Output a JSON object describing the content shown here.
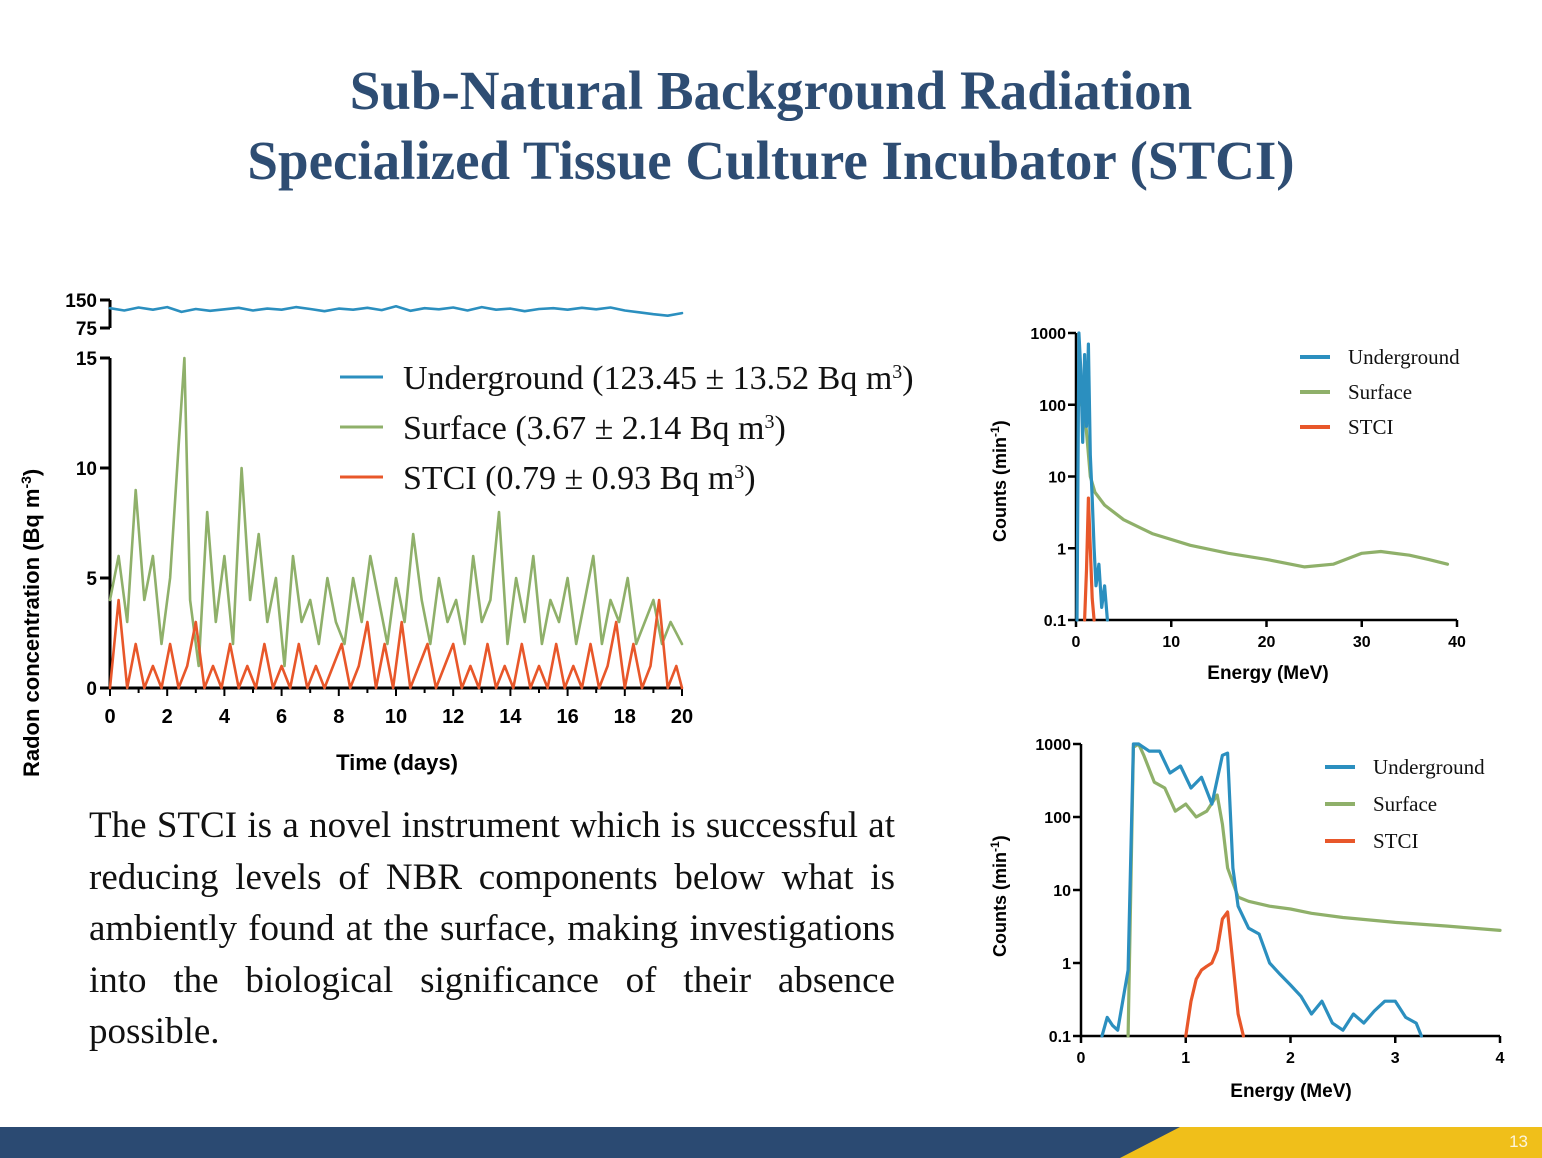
{
  "slide": {
    "title_line1": "Sub-Natural Background Radiation",
    "title_line2": "Specialized Tissue Culture Incubator (STCI)",
    "body_text": "The STCI is a novel instrument which is successful at reducing levels of NBR components below what is ambiently found at the surface, making investigations into the biological significance of their absence possible.",
    "page_number": "13"
  },
  "colors": {
    "title": "#2e4d73",
    "underground": "#2b8fbf",
    "surface": "#8fb06a",
    "stci": "#e8572a",
    "footer_navy": "#2b4a72",
    "footer_gold": "#f0bf1a"
  },
  "chart_data": [
    {
      "type": "line",
      "id": "radon",
      "xlabel": "Time (days)",
      "ylabel": "Radon concentration (Bq m",
      "ylabel_sup": "-3",
      "ylabel_end": ")",
      "xlim": [
        0,
        20
      ],
      "xticks": [
        0,
        2,
        4,
        6,
        8,
        10,
        12,
        14,
        16,
        18,
        20
      ],
      "ylim_lower": [
        0,
        15
      ],
      "yticks_lower": [
        0,
        5,
        10,
        15
      ],
      "ylim_upper": [
        75,
        150
      ],
      "yticks_upper": [
        75,
        150
      ],
      "broken_axis": true,
      "legend_placement": "top-center",
      "series": [
        {
          "name": "Underground",
          "legend": "Underground (123.45 ± 13.52 Bq m",
          "sup": "3",
          "legend_end": ")",
          "color": "#2b8fbf",
          "x": [
            0,
            0.5,
            1,
            1.5,
            2,
            2.5,
            3,
            3.5,
            4,
            4.5,
            5,
            5.5,
            6,
            6.5,
            7,
            7.5,
            8,
            8.5,
            9,
            9.5,
            10,
            10.5,
            11,
            11.5,
            12,
            12.5,
            13,
            13.5,
            14,
            14.5,
            15,
            15.5,
            16,
            16.5,
            17,
            17.5,
            18,
            18.5,
            19,
            19.5,
            20
          ],
          "y": [
            128,
            122,
            130,
            124,
            131,
            118,
            126,
            121,
            125,
            129,
            122,
            127,
            124,
            131,
            126,
            120,
            127,
            124,
            129,
            123,
            133,
            121,
            128,
            125,
            130,
            122,
            131,
            124,
            127,
            120,
            126,
            128,
            124,
            129,
            125,
            130,
            122,
            117,
            112,
            108,
            115
          ]
        },
        {
          "name": "Surface",
          "legend": "Surface (3.67 ± 2.14 Bq m",
          "sup": "3",
          "legend_end": ")",
          "color": "#8fb06a",
          "x": [
            0,
            0.3,
            0.6,
            0.9,
            1.2,
            1.5,
            1.8,
            2.1,
            2.4,
            2.6,
            2.8,
            3.1,
            3.4,
            3.7,
            4,
            4.3,
            4.6,
            4.9,
            5.2,
            5.5,
            5.8,
            6.1,
            6.4,
            6.7,
            7,
            7.3,
            7.6,
            7.9,
            8.2,
            8.5,
            8.8,
            9.1,
            9.4,
            9.7,
            10,
            10.3,
            10.6,
            10.9,
            11.2,
            11.5,
            11.8,
            12.1,
            12.4,
            12.7,
            13,
            13.3,
            13.6,
            13.9,
            14.2,
            14.5,
            14.8,
            15.1,
            15.4,
            15.7,
            16,
            16.3,
            16.6,
            16.9,
            17.2,
            17.5,
            17.8,
            18.1,
            18.4,
            18.7,
            19,
            19.3,
            19.6,
            20
          ],
          "y": [
            4,
            6,
            3,
            9,
            4,
            6,
            2,
            5,
            11,
            15,
            4,
            1,
            8,
            3,
            6,
            2,
            10,
            4,
            7,
            3,
            5,
            1,
            6,
            3,
            4,
            2,
            5,
            3,
            2,
            5,
            3,
            6,
            4,
            2,
            5,
            3,
            7,
            4,
            2,
            5,
            3,
            4,
            2,
            6,
            3,
            4,
            8,
            2,
            5,
            3,
            6,
            2,
            4,
            3,
            5,
            2,
            4,
            6,
            2,
            4,
            3,
            5,
            2,
            3,
            4,
            2,
            3,
            2
          ]
        },
        {
          "name": "STCI",
          "legend": "STCI (0.79 ± 0.93 Bq m",
          "sup": "3",
          "legend_end": ")",
          "color": "#e8572a",
          "x": [
            0,
            0.3,
            0.6,
            0.9,
            1.2,
            1.5,
            1.8,
            2.1,
            2.4,
            2.7,
            3,
            3.3,
            3.6,
            3.9,
            4.2,
            4.5,
            4.8,
            5.1,
            5.4,
            5.7,
            6,
            6.3,
            6.6,
            6.9,
            7.2,
            7.5,
            7.8,
            8.1,
            8.4,
            8.7,
            9,
            9.3,
            9.6,
            9.9,
            10.2,
            10.5,
            10.8,
            11.1,
            11.4,
            11.7,
            12,
            12.3,
            12.6,
            12.9,
            13.2,
            13.5,
            13.8,
            14.1,
            14.4,
            14.7,
            15,
            15.3,
            15.6,
            15.9,
            16.2,
            16.5,
            16.8,
            17.1,
            17.4,
            17.7,
            18,
            18.3,
            18.6,
            18.9,
            19.2,
            19.5,
            19.8,
            20
          ],
          "y": [
            0,
            4,
            0,
            2,
            0,
            1,
            0,
            2,
            0,
            1,
            3,
            0,
            1,
            0,
            2,
            0,
            1,
            0,
            2,
            0,
            1,
            0,
            2,
            0,
            1,
            0,
            1,
            2,
            0,
            1,
            3,
            0,
            2,
            0,
            3,
            0,
            1,
            2,
            0,
            1,
            2,
            0,
            1,
            0,
            2,
            0,
            1,
            0,
            2,
            0,
            1,
            0,
            2,
            0,
            1,
            0,
            2,
            0,
            1,
            3,
            0,
            2,
            0,
            1,
            4,
            0,
            1,
            0
          ]
        }
      ]
    },
    {
      "type": "line",
      "id": "spectrum_wide",
      "xlabel": "Energy (MeV)",
      "ylabel": "Counts (min",
      "ylabel_sup": "-1",
      "ylabel_end": ")",
      "xlim": [
        0,
        40
      ],
      "xticks": [
        0,
        10,
        20,
        30,
        40
      ],
      "yscale": "log",
      "ylim": [
        0.1,
        1000
      ],
      "yticks": [
        "0.1",
        "1",
        "10",
        "100",
        "1000"
      ],
      "yticks_values": [
        0.1,
        1,
        10,
        100,
        1000
      ],
      "legend_placement": "top-right",
      "series": [
        {
          "name": "Underground",
          "color": "#2b8fbf",
          "x": [
            0.1,
            0.3,
            0.5,
            0.7,
            0.9,
            1.1,
            1.3,
            1.5,
            1.7,
            1.9,
            2.1,
            2.4,
            2.7,
            3,
            3.3
          ],
          "y": [
            0.1,
            1000,
            300,
            30,
            500,
            50,
            700,
            20,
            5,
            1,
            0.3,
            0.6,
            0.15,
            0.3,
            0.1
          ]
        },
        {
          "name": "Surface",
          "color": "#8fb06a",
          "x": [
            0.5,
            0.8,
            1,
            1.2,
            1.5,
            2,
            3,
            5,
            8,
            12,
            16,
            20,
            24,
            27,
            30,
            32,
            35,
            37,
            39
          ],
          "y": [
            100,
            200,
            60,
            30,
            10,
            6,
            4,
            2.5,
            1.6,
            1.1,
            0.85,
            0.7,
            0.55,
            0.6,
            0.85,
            0.9,
            0.8,
            0.7,
            0.6
          ]
        },
        {
          "name": "STCI",
          "color": "#e8572a",
          "x": [
            0.9,
            1.1,
            1.3,
            1.5,
            1.7,
            1.9
          ],
          "y": [
            0.1,
            0.5,
            5,
            1,
            0.2,
            0.1
          ]
        }
      ]
    },
    {
      "type": "line",
      "id": "spectrum_zoom",
      "xlabel": "Energy (MeV)",
      "ylabel": "Counts (min",
      "ylabel_sup": "-1",
      "ylabel_end": ")",
      "xlim": [
        0,
        4
      ],
      "xticks": [
        0,
        1,
        2,
        3,
        4
      ],
      "yscale": "log",
      "ylim": [
        0.1,
        1000
      ],
      "yticks": [
        "0.1",
        "1",
        "10",
        "100",
        "1000"
      ],
      "yticks_values": [
        0.1,
        1,
        10,
        100,
        1000
      ],
      "legend_placement": "top-right",
      "series": [
        {
          "name": "Underground",
          "color": "#2b8fbf",
          "x": [
            0.2,
            0.25,
            0.3,
            0.35,
            0.45,
            0.5,
            0.55,
            0.65,
            0.75,
            0.85,
            0.95,
            1.05,
            1.15,
            1.25,
            1.35,
            1.4,
            1.45,
            1.5,
            1.6,
            1.7,
            1.8,
            1.9,
            2,
            2.1,
            2.2,
            2.3,
            2.4,
            2.5,
            2.6,
            2.7,
            2.8,
            2.9,
            3,
            3.1,
            3.2,
            3.25
          ],
          "y": [
            0.1,
            0.18,
            0.14,
            0.12,
            0.8,
            1000,
            1000,
            800,
            800,
            400,
            500,
            250,
            350,
            150,
            700,
            750,
            20,
            6,
            3,
            2.5,
            1,
            0.7,
            0.5,
            0.35,
            0.2,
            0.3,
            0.15,
            0.12,
            0.2,
            0.15,
            0.22,
            0.3,
            0.3,
            0.18,
            0.15,
            0.1
          ]
        },
        {
          "name": "Surface",
          "color": "#8fb06a",
          "x": [
            0.45,
            0.5,
            0.55,
            0.6,
            0.7,
            0.8,
            0.9,
            1,
            1.1,
            1.2,
            1.3,
            1.35,
            1.4,
            1.5,
            1.6,
            1.8,
            2,
            2.2,
            2.5,
            3,
            3.5,
            4
          ],
          "y": [
            0.1,
            900,
            1000,
            700,
            300,
            250,
            120,
            150,
            100,
            120,
            200,
            80,
            20,
            8,
            7,
            6,
            5.5,
            4.8,
            4.2,
            3.6,
            3.2,
            2.8
          ]
        },
        {
          "name": "STCI",
          "color": "#e8572a",
          "x": [
            1,
            1.05,
            1.1,
            1.15,
            1.2,
            1.25,
            1.3,
            1.35,
            1.4,
            1.45,
            1.5,
            1.55
          ],
          "y": [
            0.1,
            0.3,
            0.6,
            0.8,
            0.9,
            1,
            1.5,
            4,
            5,
            1,
            0.2,
            0.1
          ]
        }
      ]
    }
  ]
}
